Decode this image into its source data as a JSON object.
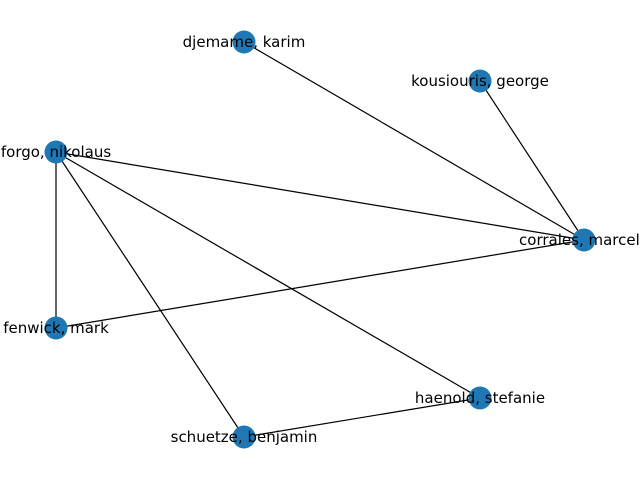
{
  "colors": {
    "node": "#1f77b4",
    "edge": "#000000",
    "background": "#ffffff"
  },
  "nodes": [
    {
      "id": "djemame",
      "label": "djemame, karim"
    },
    {
      "id": "kousiouris",
      "label": "kousiouris, george"
    },
    {
      "id": "forgo",
      "label": "forgo, nikolaus"
    },
    {
      "id": "corrales",
      "label": "corrales, marcelo"
    },
    {
      "id": "fenwick",
      "label": "fenwick, mark"
    },
    {
      "id": "haenold",
      "label": "haenold, stefanie"
    },
    {
      "id": "schuetze",
      "label": "schuetze, benjamin"
    }
  ],
  "edges": [
    [
      "djemame",
      "corrales"
    ],
    [
      "kousiouris",
      "corrales"
    ],
    [
      "forgo",
      "corrales"
    ],
    [
      "forgo",
      "fenwick"
    ],
    [
      "forgo",
      "haenold"
    ],
    [
      "forgo",
      "schuetze"
    ],
    [
      "fenwick",
      "corrales"
    ],
    [
      "schuetze",
      "haenold"
    ]
  ]
}
